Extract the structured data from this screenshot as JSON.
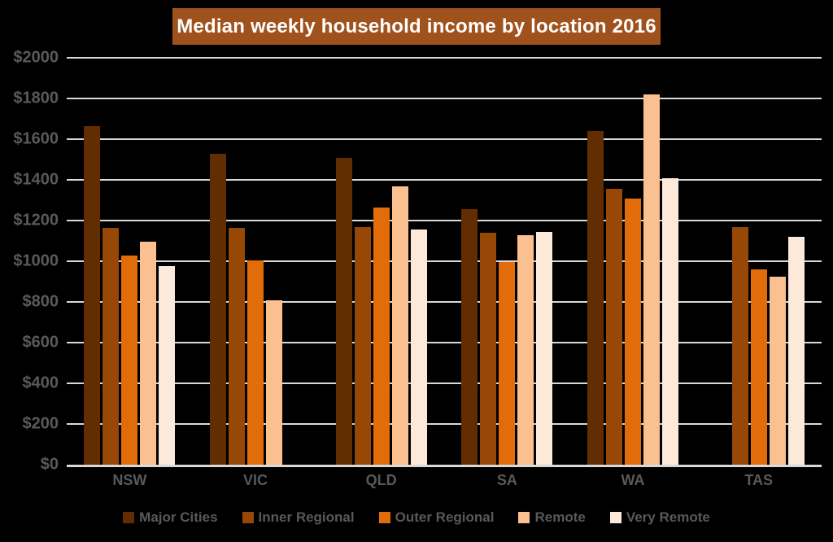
{
  "colors": {
    "background": "#000000",
    "title_bg": "#A0521D",
    "title_text": "#FFFFFF",
    "grid": "#D9D9D9",
    "axis_text": "#595959",
    "legend_text": "#595959"
  },
  "chart_data": {
    "type": "bar",
    "title": "Median weekly household income by location 2016",
    "categories": [
      "NSW",
      "VIC",
      "QLD",
      "SA",
      "WA",
      "TAS"
    ],
    "series": [
      {
        "name": "Major Cities",
        "color": "#632D02",
        "values": [
          1665,
          1530,
          1510,
          1255,
          1640,
          null
        ]
      },
      {
        "name": "Inner Regional",
        "color": "#974706",
        "values": [
          1165,
          1165,
          1170,
          1140,
          1355,
          1170
        ]
      },
      {
        "name": "Outer Regional",
        "color": "#E36C0A",
        "values": [
          1030,
          1005,
          1265,
          995,
          1310,
          960
        ]
      },
      {
        "name": "Remote",
        "color": "#FAC08F",
        "values": [
          1095,
          810,
          1370,
          1130,
          1820,
          925
        ]
      },
      {
        "name": "Very Remote",
        "color": "#FDE9D9",
        "values": [
          975,
          null,
          1155,
          1145,
          1410,
          1120
        ]
      }
    ],
    "ylim": [
      0,
      2000
    ],
    "ytick_step": 200,
    "ytick_values": [
      0,
      200,
      400,
      600,
      800,
      1000,
      1200,
      1400,
      1600,
      1800,
      2000
    ],
    "ytick_labels": [
      "$0",
      "$200",
      "$400",
      "$600",
      "$800",
      "$1000",
      "$1200",
      "$1400",
      "$1600",
      "$1800",
      "$2000"
    ],
    "grid": true,
    "legend_position": "bottom"
  }
}
